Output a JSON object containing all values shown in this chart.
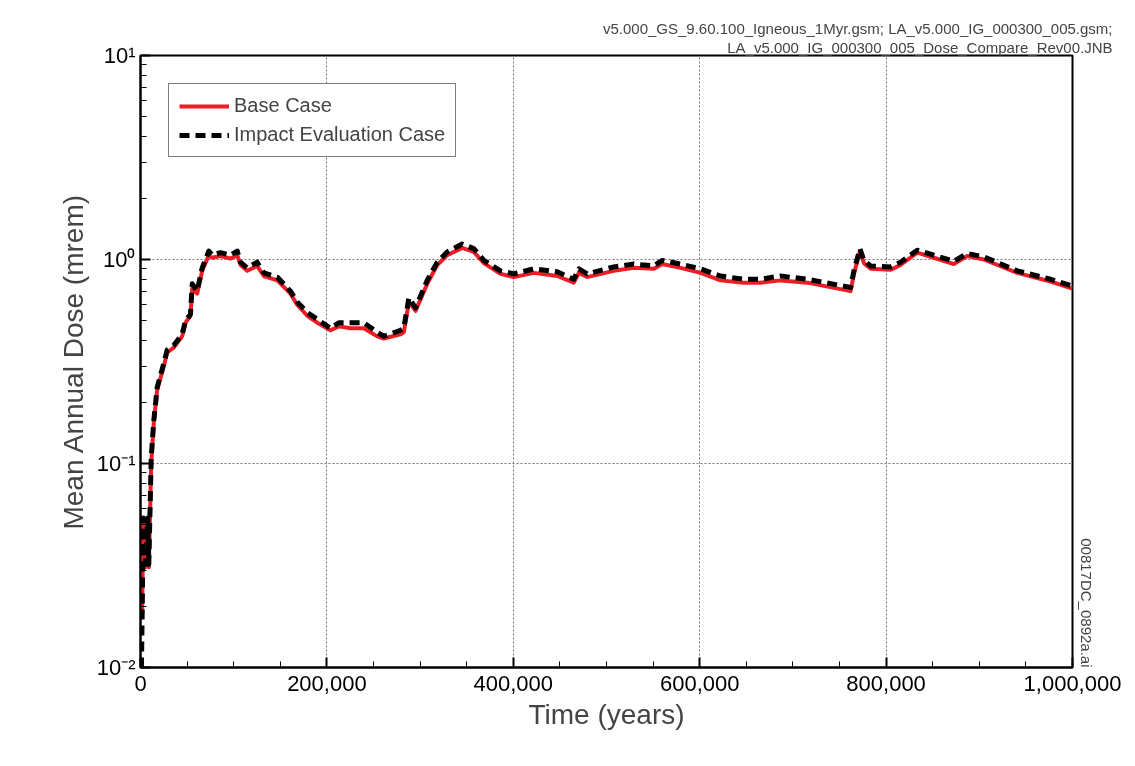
{
  "chart_data": {
    "type": "line",
    "xlabel": "Time (years)",
    "ylabel": "Mean Annual Dose (mrem)",
    "x": [
      1000,
      1800,
      2900,
      5400,
      7800,
      8900,
      11500,
      14300,
      17900,
      25000,
      28600,
      35700,
      44700,
      48300,
      53600,
      55500,
      60800,
      66200,
      73300,
      76900,
      85800,
      96600,
      103800,
      107300,
      114500,
      125200,
      132300,
      146700,
      160900,
      168100,
      178900,
      189600,
      203900,
      212800,
      225300,
      239600,
      254000,
      261100,
      279000,
      282500,
      288000,
      295100,
      307600,
      318400,
      329100,
      345200,
      357600,
      368400,
      386300,
      400600,
      422000,
      447100,
      464900,
      470300,
      479300,
      507800,
      529300,
      550800,
      559800,
      579500,
      600900,
      622300,
      647300,
      665200,
      686700,
      715400,
      761900,
      765500,
      771900,
      776200,
      783300,
      804700,
      815500,
      833400,
      851200,
      872700,
      887000,
      904800,
      940700,
      976400,
      1000000
    ],
    "series": [
      {
        "name": "Base Case",
        "color": "#ee1c25",
        "line_style": "solid",
        "values": [
          null,
          0.0184,
          0.05,
          0.031,
          0.05,
          0.031,
          0.1,
          0.16,
          0.23,
          0.3,
          0.35,
          0.37,
          0.42,
          0.49,
          0.53,
          0.72,
          0.68,
          0.88,
          1.05,
          1.02,
          1.04,
          1.01,
          1.05,
          0.94,
          0.88,
          0.93,
          0.83,
          0.79,
          0.68,
          0.6,
          0.53,
          0.49,
          0.45,
          0.47,
          0.46,
          0.46,
          0.42,
          0.41,
          0.43,
          0.44,
          0.62,
          0.56,
          0.76,
          0.94,
          1.05,
          1.14,
          1.09,
          0.96,
          0.85,
          0.82,
          0.86,
          0.83,
          0.77,
          0.86,
          0.82,
          0.88,
          0.91,
          0.9,
          0.95,
          0.91,
          0.86,
          0.79,
          0.77,
          0.77,
          0.79,
          0.77,
          0.7,
          0.85,
          1.1,
          0.96,
          0.9,
          0.89,
          0.94,
          1.08,
          1.02,
          0.95,
          1.04,
          1.0,
          0.86,
          0.78,
          0.72
        ]
      },
      {
        "name": "Impact Evaluation Case",
        "color": "#000000",
        "line_style": "dashed",
        "values": [
          0.01,
          0.0184,
          0.054,
          0.032,
          0.054,
          0.032,
          0.107,
          0.163,
          0.236,
          0.31,
          0.36,
          0.38,
          0.43,
          0.5,
          0.54,
          0.76,
          0.7,
          0.91,
          1.1,
          1.05,
          1.08,
          1.05,
          1.1,
          0.97,
          0.91,
          0.97,
          0.86,
          0.82,
          0.7,
          0.62,
          0.55,
          0.51,
          0.46,
          0.49,
          0.49,
          0.49,
          0.44,
          0.42,
          0.45,
          0.46,
          0.65,
          0.58,
          0.79,
          0.97,
          1.09,
          1.19,
          1.13,
          0.99,
          0.88,
          0.85,
          0.9,
          0.87,
          0.8,
          0.9,
          0.85,
          0.92,
          0.95,
          0.93,
          0.99,
          0.95,
          0.9,
          0.83,
          0.8,
          0.8,
          0.83,
          0.8,
          0.73,
          0.88,
          1.13,
          0.99,
          0.93,
          0.92,
          0.97,
          1.11,
          1.05,
          0.98,
          1.07,
          1.03,
          0.88,
          0.8,
          0.74
        ]
      }
    ],
    "log": "y",
    "xlim": [
      0,
      1000000
    ],
    "ylim": [
      0.01,
      10
    ],
    "xticks": [
      {
        "value": 0,
        "label": "0"
      },
      {
        "value": 200000,
        "label": "200,000"
      },
      {
        "value": 400000,
        "label": "400,000"
      },
      {
        "value": 600000,
        "label": "600,000"
      },
      {
        "value": 800000,
        "label": "800,000"
      },
      {
        "value": 1000000,
        "label": "1,000,000"
      }
    ],
    "yticks": [
      {
        "value": 0.01,
        "label": "10⁻²"
      },
      {
        "value": 0.1,
        "label": "10⁻¹"
      },
      {
        "value": 1,
        "label": "10⁰"
      },
      {
        "value": 10,
        "label": "10¹"
      }
    ],
    "grid": true,
    "legend": "top left",
    "annotations": [
      "v5.000_GS_9.60.100_Igneous_1Myr.gsm; LA_v5.000_IG_000300_005.gsm;",
      "LA_v5.000_IG_000300_005_Dose_Compare_Rev00.JNB",
      "00817DC_0892a.ai"
    ]
  }
}
